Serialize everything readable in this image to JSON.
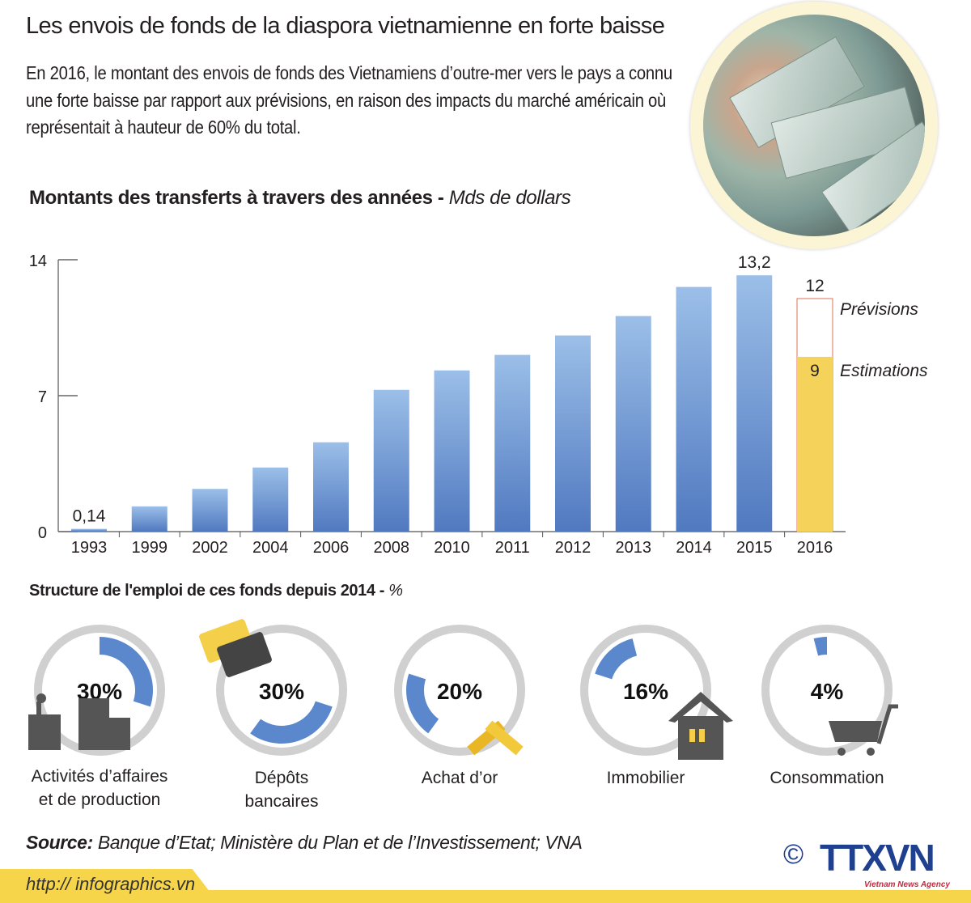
{
  "header": {
    "title": "Les envois de fonds de la diaspora vietnamienne en forte baisse",
    "intro": "En 2016, le montant des envois de fonds des Vietnamiens d’outre-mer vers le pays a connu une forte baisse par rapport aux prévisions, en raison des impacts du marché américain où représentait à hauteur de 60% du total."
  },
  "chart_data": [
    {
      "type": "bar",
      "title": "Montants des transferts à travers des années",
      "unit": "Mds de dollars",
      "categories": [
        "1993",
        "1999",
        "2002",
        "2004",
        "2006",
        "2008",
        "2010",
        "2011",
        "2012",
        "2013",
        "2014",
        "2015",
        "2016"
      ],
      "values": [
        0.14,
        1.3,
        2.2,
        3.3,
        4.6,
        7.3,
        8.3,
        9.1,
        10.1,
        11.1,
        12.6,
        13.2,
        9
      ],
      "data_labels": {
        "1993": "0,14",
        "2015": "13,2"
      },
      "forecast_2016": {
        "value": 12,
        "label": "12",
        "name": "Prévisions",
        "color": "#e07050"
      },
      "estimate_2016": {
        "value": 9,
        "label": "9",
        "name": "Estimations",
        "color": "#f5d35a"
      },
      "yticks": [
        "0",
        "7",
        "14"
      ],
      "ylim": [
        0,
        14
      ],
      "bar_color": "#6b94d0",
      "grid": false
    },
    {
      "type": "pie",
      "title": "Structure de l'emploi de ces fonds depuis 2014",
      "unit": "%",
      "slices": [
        {
          "label": "Activités d’affaires et de production",
          "value": 30,
          "text": "30%",
          "icon": "factory-buildings-icon"
        },
        {
          "label": "Dépôts bancaires",
          "value": 30,
          "text": "30%",
          "icon": "bank-cards-icon"
        },
        {
          "label": "Achat d’or",
          "value": 20,
          "text": "20%",
          "icon": "gold-bars-icon"
        },
        {
          "label": "Immobilier",
          "value": 16,
          "text": "16%",
          "icon": "house-icon"
        },
        {
          "label": "Consommation",
          "value": 4,
          "text": "4%",
          "icon": "shopping-cart-icon"
        }
      ],
      "ring_color": "#d0d0d0",
      "arc_color": "#5b87cc"
    }
  ],
  "footer": {
    "source_label": "Source:",
    "source_text": "Banque d’Etat; Ministère du Plan et de l’Investissement; VNA",
    "url": "http:// infographics.vn",
    "logo": "TTXVN",
    "logo_sub": "Vietnam News Agency",
    "copyright": "©"
  }
}
